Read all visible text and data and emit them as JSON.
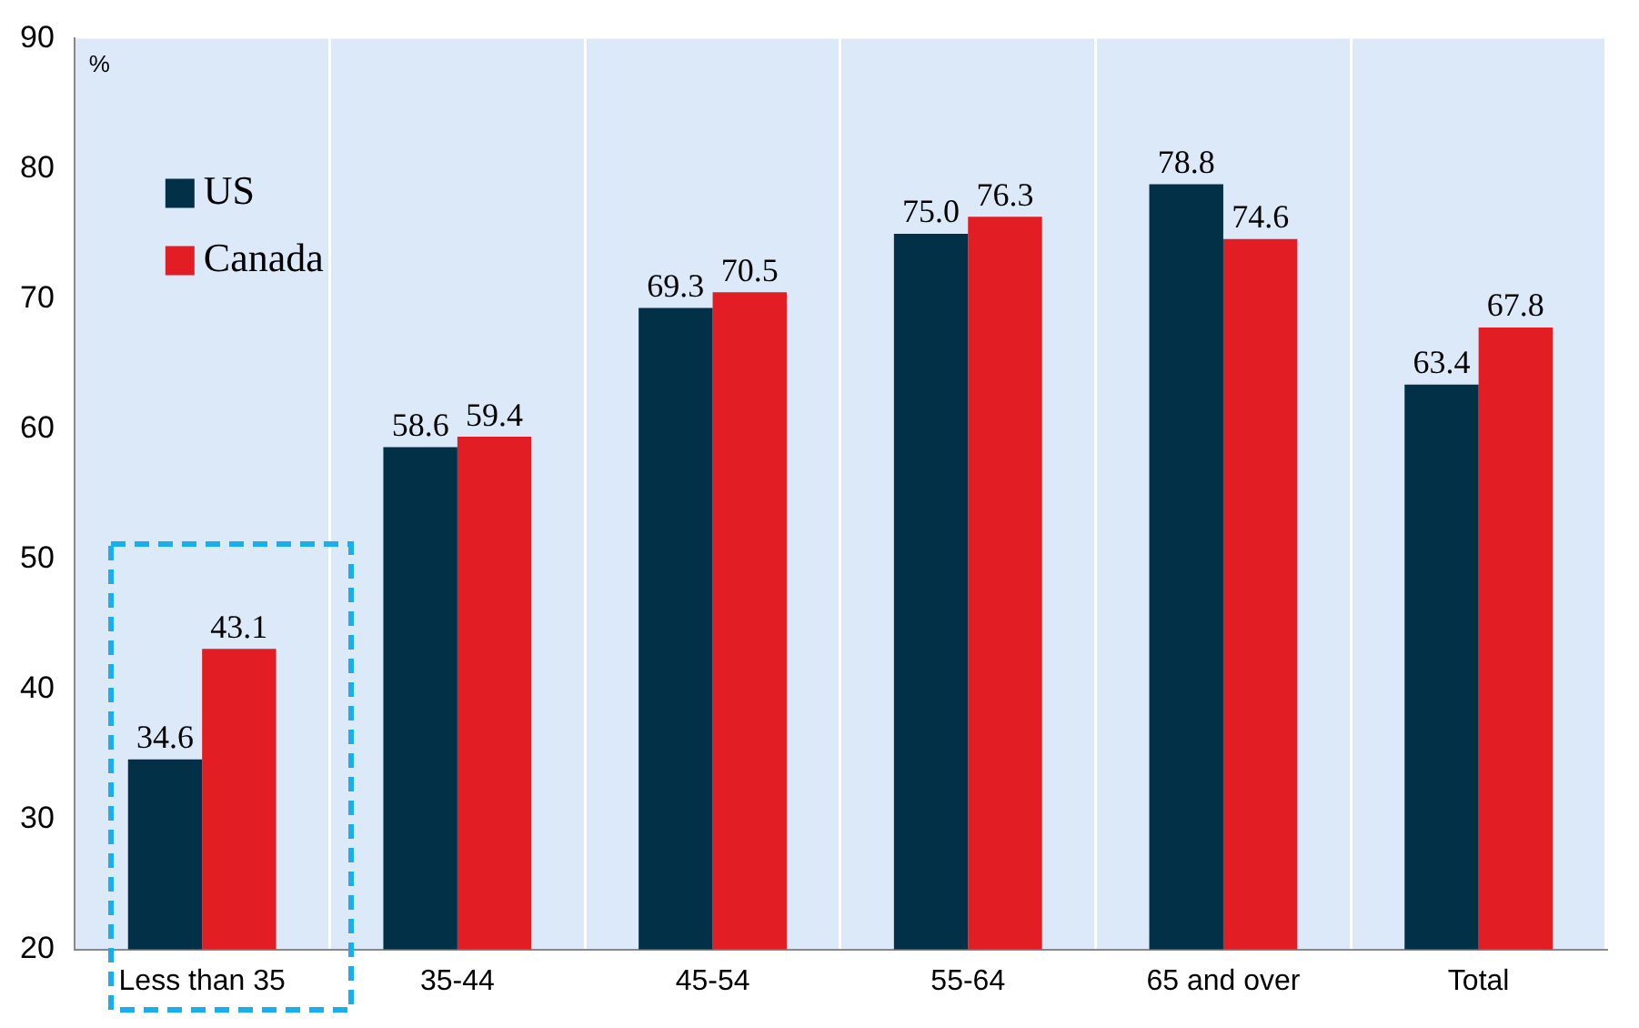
{
  "chart_data": {
    "type": "bar",
    "ylabel": "%",
    "categories": [
      "Less than 35",
      "35-44",
      "45-54",
      "55-64",
      "65 and over",
      "Total"
    ],
    "series": [
      {
        "name": "US",
        "color": "#023047",
        "values": [
          34.6,
          58.6,
          69.3,
          75.0,
          78.8,
          63.4
        ],
        "value_labels": [
          "34.6",
          "58.6",
          "69.3",
          "75.0",
          "78.8",
          "63.4"
        ]
      },
      {
        "name": "Canada",
        "color": "#e31d24",
        "values": [
          43.1,
          59.4,
          70.5,
          76.3,
          74.6,
          67.8
        ],
        "value_labels": [
          "43.1",
          "59.4",
          "70.5",
          "76.3",
          "74.6",
          "67.8"
        ]
      }
    ],
    "ylim": [
      20,
      90
    ],
    "yticks": [
      20,
      30,
      40,
      50,
      60,
      70,
      80,
      90
    ],
    "grid": "x",
    "legend": "top left"
  }
}
